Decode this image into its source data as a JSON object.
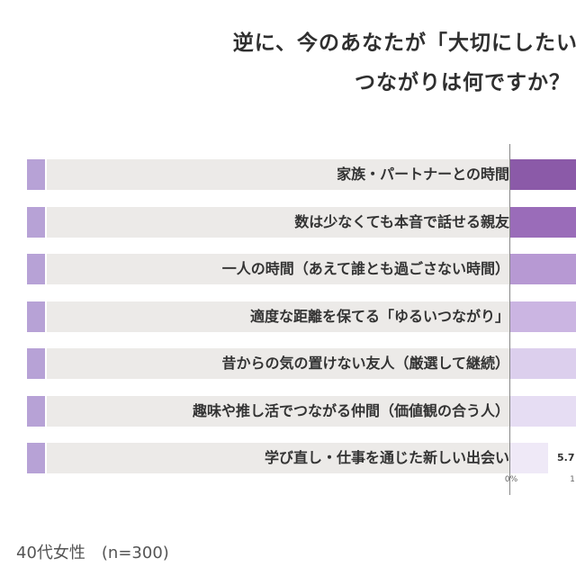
{
  "title": {
    "line1": "逆に、今のあなたが「大切にしたい・",
    "line2": "つながりは何ですか？"
  },
  "footnote": "40代女性　(n=300)",
  "colors": {
    "label_box": "#eceae8",
    "marker": "#b7a2d6",
    "bars": [
      "#8b5aa8",
      "#9a6cb9",
      "#b799d3",
      "#cbb5e2",
      "#dccfed",
      "#e6ddf3",
      "#efe9f7"
    ]
  },
  "chart_data": {
    "type": "bar",
    "orientation": "horizontal",
    "categories": [
      "家族・パートナーとの時間",
      "数は少なくても本音で話せる親友",
      "一人の時間（あえて誰とも過ごさない時間）",
      "適度な距離を保てる「ゆるいつながり」",
      "昔からの気の置けない友人（厳選して継続）",
      "趣味や推し活でつながる仲間（価値観の合う人）",
      "学び直し・仕事を通じた新しい出会い"
    ],
    "values": [
      null,
      null,
      null,
      null,
      null,
      null,
      5.7
    ],
    "data_labels": [
      "",
      "",
      "",
      "",
      "",
      "",
      "5.7"
    ],
    "x_ticks": [
      "0%",
      "1"
    ],
    "unit": "%"
  }
}
